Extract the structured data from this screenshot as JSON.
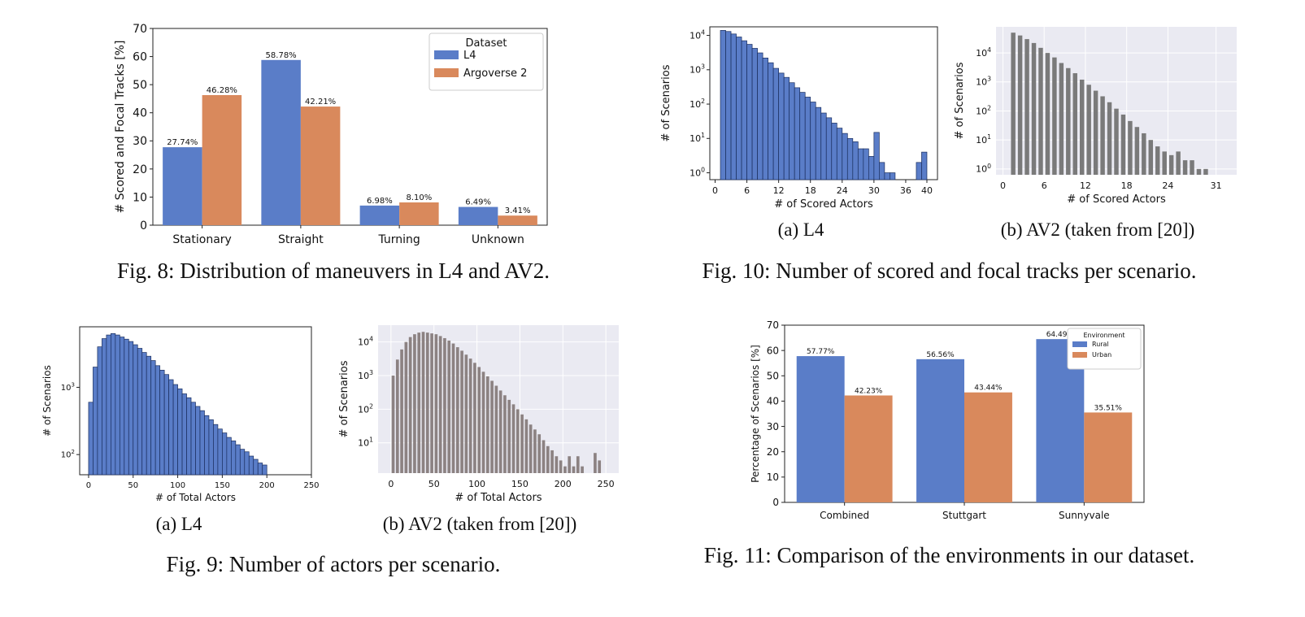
{
  "captions": {
    "fig8": "Fig. 8: Distribution of maneuvers in L4 and AV2.",
    "fig9": "Fig. 9: Number of actors per scenario.",
    "fig10": "Fig. 10: Number of scored and focal tracks per scenario.",
    "fig11": "Fig. 11: Comparison of the environments in our dataset.",
    "fig9a": "(a) L4",
    "fig9b": "(b) AV2 (taken from [20])",
    "fig10a": "(a) L4",
    "fig10b": "(b) AV2 (taken from [20])"
  },
  "colors": {
    "blue": "#5a7dc8",
    "orange": "#d9895c",
    "gray": "#7a7a7a",
    "graybrown": "#8c8282",
    "seaborn_bg": "#eaeaf2"
  },
  "chart_data": [
    {
      "id": "fig8",
      "type": "bar",
      "categories": [
        "Stationary",
        "Straight",
        "Turning",
        "Unknown"
      ],
      "series": [
        {
          "name": "L4",
          "values": [
            27.74,
            58.78,
            6.98,
            6.49
          ],
          "labels": [
            "27.74%",
            "58.78%",
            "6.98%",
            "6.49%"
          ]
        },
        {
          "name": "Argoverse 2",
          "values": [
            46.28,
            42.21,
            8.1,
            3.41
          ],
          "labels": [
            "46.28%",
            "42.21%",
            "8.10%",
            "3.41%"
          ]
        }
      ],
      "ylabel": "# Scored and Focal Tracks [%]",
      "ylim": [
        0,
        70
      ],
      "yticks": [
        "0",
        "10",
        "20",
        "30",
        "40",
        "50",
        "60",
        "70"
      ],
      "legend": {
        "title": "Dataset",
        "placement": "top-right"
      }
    },
    {
      "id": "fig9a",
      "type": "bar",
      "scale": "log",
      "xlabel": "# of Total Actors",
      "ylabel": "# of Scenarios",
      "xlim": [
        -10,
        250
      ],
      "xticks": [
        "0",
        "50",
        "100",
        "150",
        "200",
        "250"
      ],
      "ylim_log10": [
        1.7,
        3.9
      ],
      "yticks": [
        "10^2",
        "10^3"
      ],
      "bin_start": 0,
      "bin_width": 5,
      "values": [
        600,
        2000,
        4000,
        5300,
        6000,
        6300,
        6000,
        5600,
        5200,
        4800,
        4300,
        3800,
        3300,
        2900,
        2500,
        2100,
        1800,
        1550,
        1300,
        1100,
        950,
        800,
        700,
        600,
        520,
        450,
        380,
        330,
        280,
        240,
        210,
        180,
        160,
        140,
        120,
        110,
        95,
        85,
        75,
        70
      ]
    },
    {
      "id": "fig9b",
      "type": "bar",
      "scale": "log",
      "xlabel": "# of Total Actors",
      "ylabel": "# of Scenarios",
      "xlim": [
        -15,
        265
      ],
      "xticks": [
        "0",
        "50",
        "100",
        "150",
        "200",
        "250"
      ],
      "ylim_log10": [
        0.1,
        4.5
      ],
      "yticks": [
        "10^1",
        "10^2",
        "10^3",
        "10^4"
      ],
      "bin_start": 0,
      "bin_width": 5,
      "values": [
        1000,
        3000,
        6000,
        10000,
        14000,
        17000,
        19000,
        20000,
        19000,
        18000,
        17000,
        15000,
        13000,
        11000,
        9000,
        7000,
        5500,
        4200,
        3200,
        2400,
        1800,
        1300,
        950,
        700,
        500,
        360,
        260,
        190,
        140,
        100,
        70,
        50,
        35,
        25,
        18,
        12,
        8,
        6,
        4,
        3,
        2,
        4,
        2,
        4,
        2,
        1,
        1,
        5,
        3
      ],
      "gaps_at_bins": [
        48,
        49
      ]
    },
    {
      "id": "fig10a",
      "type": "bar",
      "scale": "log",
      "xlabel": "# of Scored Actors",
      "ylabel": "# of Scenarios",
      "xlim": [
        -1,
        42
      ],
      "xticks": [
        "0",
        "6",
        "12",
        "18",
        "24",
        "30",
        "36",
        "40"
      ],
      "ylim_log10": [
        -0.2,
        4.25
      ],
      "yticks": [
        "10^0",
        "10^1",
        "10^2",
        "10^3",
        "10^4"
      ],
      "bin_start": 1,
      "bin_width": 1,
      "values": [
        14000,
        13000,
        11000,
        9000,
        7000,
        5500,
        4200,
        3100,
        2200,
        1600,
        1100,
        800,
        600,
        420,
        300,
        220,
        160,
        115,
        80,
        55,
        40,
        28,
        20,
        14,
        10,
        8,
        5,
        5,
        3,
        15,
        2,
        1,
        1,
        0,
        0,
        0,
        0,
        2,
        4
      ],
      "tail": [
        [
          27,
          5
        ],
        [
          28,
          5
        ],
        [
          29,
          3
        ],
        [
          30,
          15
        ],
        [
          31,
          2
        ],
        [
          32,
          1
        ],
        [
          33,
          1
        ],
        [
          38,
          2
        ],
        [
          39,
          4
        ]
      ]
    },
    {
      "id": "fig10b",
      "type": "bar",
      "scale": "log",
      "xlabel": "# of Scored Actors",
      "ylabel": "# of Scenarios",
      "xlim": [
        -1,
        34
      ],
      "xticks": [
        "0",
        "6",
        "12",
        "18",
        "24",
        "31"
      ],
      "ylim_log10": [
        -0.2,
        4.9
      ],
      "yticks": [
        "10^0",
        "10^1",
        "10^2",
        "10^3",
        "10^4"
      ],
      "bin_start": 1,
      "bin_width": 1,
      "values": [
        50000,
        40000,
        30000,
        22000,
        15000,
        10000,
        7000,
        4500,
        3000,
        2000,
        1200,
        800,
        500,
        320,
        200,
        120,
        75,
        45,
        28,
        17,
        10,
        6,
        4,
        3,
        4,
        2,
        2,
        1,
        1
      ]
    },
    {
      "id": "fig11",
      "type": "bar",
      "categories": [
        "Combined",
        "Stuttgart",
        "Sunnyvale"
      ],
      "series": [
        {
          "name": "Rural",
          "values": [
            57.77,
            56.56,
            64.49
          ],
          "labels": [
            "57.77%",
            "56.56%",
            "64.49%"
          ]
        },
        {
          "name": "Urban",
          "values": [
            42.23,
            43.44,
            35.51
          ],
          "labels": [
            "42.23%",
            "43.44%",
            "35.51%"
          ]
        }
      ],
      "ylabel": "Percentage of Scenarios [%]",
      "ylim": [
        0,
        70
      ],
      "yticks": [
        "0",
        "10",
        "20",
        "30",
        "40",
        "50",
        "60",
        "70"
      ],
      "legend": {
        "title": "Environment",
        "placement": "top-right"
      }
    }
  ]
}
